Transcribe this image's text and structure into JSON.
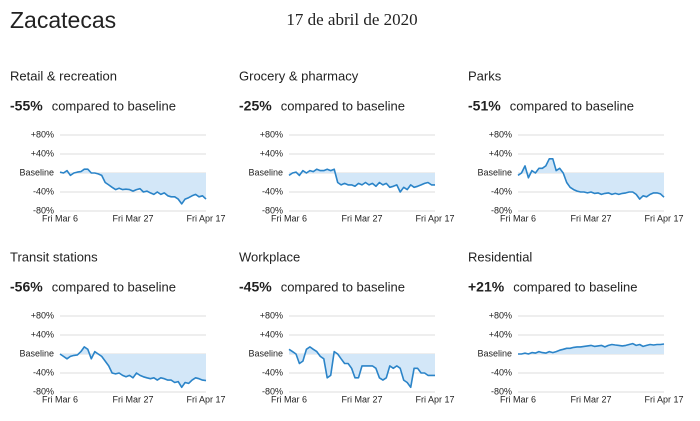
{
  "title": "Zacatecas",
  "date": "17 de abril de 2020",
  "charts": [
    {
      "type": "line",
      "title": "Retail & recreation",
      "headline": "-55%",
      "headline_text": "compared to baseline",
      "color": "#2b84c8",
      "fill": "#d3e7f8",
      "grid": true,
      "categories": [
        "Fri Mar 6",
        null,
        null,
        null,
        null,
        null,
        null,
        null,
        null,
        null,
        null,
        null,
        null,
        null,
        null,
        null,
        null,
        null,
        null,
        null,
        null,
        "Fri Mar 27",
        null,
        null,
        null,
        null,
        null,
        null,
        null,
        null,
        null,
        null,
        null,
        null,
        null,
        null,
        null,
        null,
        null,
        null,
        null,
        null,
        "Fri Apr 17"
      ],
      "values": [
        2,
        0,
        5,
        -5,
        0,
        2,
        3,
        8,
        8,
        0,
        0,
        -2,
        -5,
        -20,
        -25,
        -30,
        -35,
        -32,
        -35,
        -34,
        -35,
        -38,
        -35,
        -33,
        -40,
        -38,
        -42,
        -45,
        -40,
        -45,
        -42,
        -48,
        -50,
        -50,
        -55,
        -65,
        -55,
        -52,
        -48,
        -45,
        -50,
        -48,
        -55
      ],
      "ylim": [
        -80,
        80
      ],
      "yticks": [
        {
          "value": 80,
          "label": "+80%"
        },
        {
          "value": 40,
          "label": "+40%"
        },
        {
          "value": 0,
          "label": "Baseline"
        },
        {
          "value": -40,
          "label": "-40%"
        },
        {
          "value": -80,
          "label": "-80%"
        }
      ]
    },
    {
      "type": "line",
      "title": "Grocery & pharmacy",
      "headline": "-25%",
      "headline_text": "compared to baseline",
      "color": "#2b84c8",
      "fill": "#d3e7f8",
      "grid": true,
      "categories": [
        "Fri Mar 6",
        null,
        null,
        null,
        null,
        null,
        null,
        null,
        null,
        null,
        null,
        null,
        null,
        null,
        null,
        null,
        null,
        null,
        null,
        null,
        null,
        "Fri Mar 27",
        null,
        null,
        null,
        null,
        null,
        null,
        null,
        null,
        null,
        null,
        null,
        null,
        null,
        null,
        null,
        null,
        null,
        null,
        null,
        null,
        "Fri Apr 17"
      ],
      "values": [
        -5,
        0,
        2,
        -5,
        5,
        0,
        5,
        3,
        8,
        5,
        5,
        8,
        5,
        8,
        -20,
        -25,
        -22,
        -25,
        -25,
        -28,
        -22,
        -25,
        -20,
        -25,
        -22,
        -28,
        -20,
        -25,
        -22,
        -30,
        -28,
        -25,
        -40,
        -30,
        -35,
        -25,
        -30,
        -28,
        -25,
        -22,
        -20,
        -25,
        -25
      ],
      "ylim": [
        -80,
        80
      ],
      "yticks": [
        {
          "value": 80,
          "label": "+80%"
        },
        {
          "value": 40,
          "label": "+40%"
        },
        {
          "value": 0,
          "label": "Baseline"
        },
        {
          "value": -40,
          "label": "-40%"
        },
        {
          "value": -80,
          "label": "-80%"
        }
      ]
    },
    {
      "type": "line",
      "title": "Parks",
      "headline": "-51%",
      "headline_text": "compared to baseline",
      "color": "#2b84c8",
      "fill": "#d3e7f8",
      "grid": true,
      "categories": [
        "Fri Mar 6",
        null,
        null,
        null,
        null,
        null,
        null,
        null,
        null,
        null,
        null,
        null,
        null,
        null,
        null,
        null,
        null,
        null,
        null,
        null,
        null,
        "Fri Mar 27",
        null,
        null,
        null,
        null,
        null,
        null,
        null,
        null,
        null,
        null,
        null,
        null,
        null,
        null,
        null,
        null,
        null,
        null,
        null,
        null,
        "Fri Apr 17"
      ],
      "values": [
        -5,
        0,
        15,
        -10,
        5,
        0,
        10,
        10,
        15,
        30,
        30,
        5,
        10,
        0,
        -20,
        -30,
        -35,
        -38,
        -40,
        -40,
        -42,
        -40,
        -43,
        -42,
        -45,
        -43,
        -42,
        -45,
        -43,
        -45,
        -43,
        -42,
        -40,
        -40,
        -45,
        -55,
        -48,
        -50,
        -45,
        -42,
        -42,
        -44,
        -51
      ],
      "ylim": [
        -80,
        80
      ],
      "yticks": [
        {
          "value": 80,
          "label": "+80%"
        },
        {
          "value": 40,
          "label": "+40%"
        },
        {
          "value": 0,
          "label": "Baseline"
        },
        {
          "value": -40,
          "label": "-40%"
        },
        {
          "value": -80,
          "label": "-80%"
        }
      ]
    },
    {
      "type": "line",
      "title": "Transit stations",
      "headline": "-56%",
      "headline_text": "compared to baseline",
      "color": "#2b84c8",
      "fill": "#d3e7f8",
      "grid": true,
      "categories": [
        "Fri Mar 6",
        null,
        null,
        null,
        null,
        null,
        null,
        null,
        null,
        null,
        null,
        null,
        null,
        null,
        null,
        null,
        null,
        null,
        null,
        null,
        null,
        "Fri Mar 27",
        null,
        null,
        null,
        null,
        null,
        null,
        null,
        null,
        null,
        null,
        null,
        null,
        null,
        null,
        null,
        null,
        null,
        null,
        null,
        null,
        "Fri Apr 17"
      ],
      "values": [
        0,
        -5,
        -10,
        -5,
        -3,
        -2,
        5,
        15,
        10,
        -10,
        5,
        0,
        -5,
        -15,
        -25,
        -40,
        -42,
        -40,
        -45,
        -48,
        -45,
        -50,
        -40,
        -45,
        -48,
        -50,
        -52,
        -50,
        -55,
        -50,
        -52,
        -55,
        -55,
        -60,
        -58,
        -70,
        -60,
        -62,
        -55,
        -50,
        -52,
        -55,
        -56
      ],
      "ylim": [
        -80,
        80
      ],
      "yticks": [
        {
          "value": 80,
          "label": "+80%"
        },
        {
          "value": 40,
          "label": "+40%"
        },
        {
          "value": 0,
          "label": "Baseline"
        },
        {
          "value": -40,
          "label": "-40%"
        },
        {
          "value": -80,
          "label": "-80%"
        }
      ]
    },
    {
      "type": "line",
      "title": "Workplace",
      "headline": "-45%",
      "headline_text": "compared to baseline",
      "color": "#2b84c8",
      "fill": "#d3e7f8",
      "grid": true,
      "categories": [
        "Fri Mar 6",
        null,
        null,
        null,
        null,
        null,
        null,
        null,
        null,
        null,
        null,
        null,
        null,
        null,
        null,
        null,
        null,
        null,
        null,
        null,
        null,
        "Fri Mar 27",
        null,
        null,
        null,
        null,
        null,
        null,
        null,
        null,
        null,
        null,
        null,
        null,
        null,
        null,
        null,
        null,
        null,
        null,
        null,
        null,
        "Fri Apr 17"
      ],
      "values": [
        10,
        5,
        0,
        -20,
        -15,
        10,
        15,
        10,
        5,
        -5,
        -10,
        -50,
        -45,
        5,
        0,
        -10,
        -20,
        -20,
        -30,
        -50,
        -50,
        -25,
        -25,
        -25,
        -25,
        -30,
        -50,
        -55,
        -50,
        -25,
        -30,
        -25,
        -30,
        -55,
        -60,
        -70,
        -30,
        -30,
        -40,
        -40,
        -45,
        -45,
        -45
      ],
      "ylim": [
        -80,
        80
      ],
      "yticks": [
        {
          "value": 80,
          "label": "+80%"
        },
        {
          "value": 40,
          "label": "+40%"
        },
        {
          "value": 0,
          "label": "Baseline"
        },
        {
          "value": -40,
          "label": "-40%"
        },
        {
          "value": -80,
          "label": "-80%"
        }
      ]
    },
    {
      "type": "line",
      "title": "Residential",
      "headline": "+21%",
      "headline_text": "compared to baseline",
      "color": "#2b84c8",
      "fill": "#d3e7f8",
      "grid": true,
      "categories": [
        "Fri Mar 6",
        null,
        null,
        null,
        null,
        null,
        null,
        null,
        null,
        null,
        null,
        null,
        null,
        null,
        null,
        null,
        null,
        null,
        null,
        null,
        null,
        "Fri Mar 27",
        null,
        null,
        null,
        null,
        null,
        null,
        null,
        null,
        null,
        null,
        null,
        null,
        null,
        null,
        null,
        null,
        null,
        null,
        null,
        null,
        "Fri Apr 17"
      ],
      "values": [
        0,
        0,
        2,
        0,
        3,
        2,
        5,
        3,
        2,
        5,
        3,
        5,
        8,
        10,
        12,
        12,
        14,
        15,
        15,
        16,
        17,
        18,
        16,
        17,
        18,
        15,
        18,
        20,
        19,
        18,
        17,
        18,
        20,
        22,
        18,
        20,
        16,
        18,
        20,
        19,
        20,
        20,
        21
      ],
      "ylim": [
        -80,
        80
      ],
      "yticks": [
        {
          "value": 80,
          "label": "+80%"
        },
        {
          "value": 40,
          "label": "+40%"
        },
        {
          "value": 0,
          "label": "Baseline"
        },
        {
          "value": -40,
          "label": "-40%"
        },
        {
          "value": -80,
          "label": "-80%"
        }
      ]
    }
  ]
}
